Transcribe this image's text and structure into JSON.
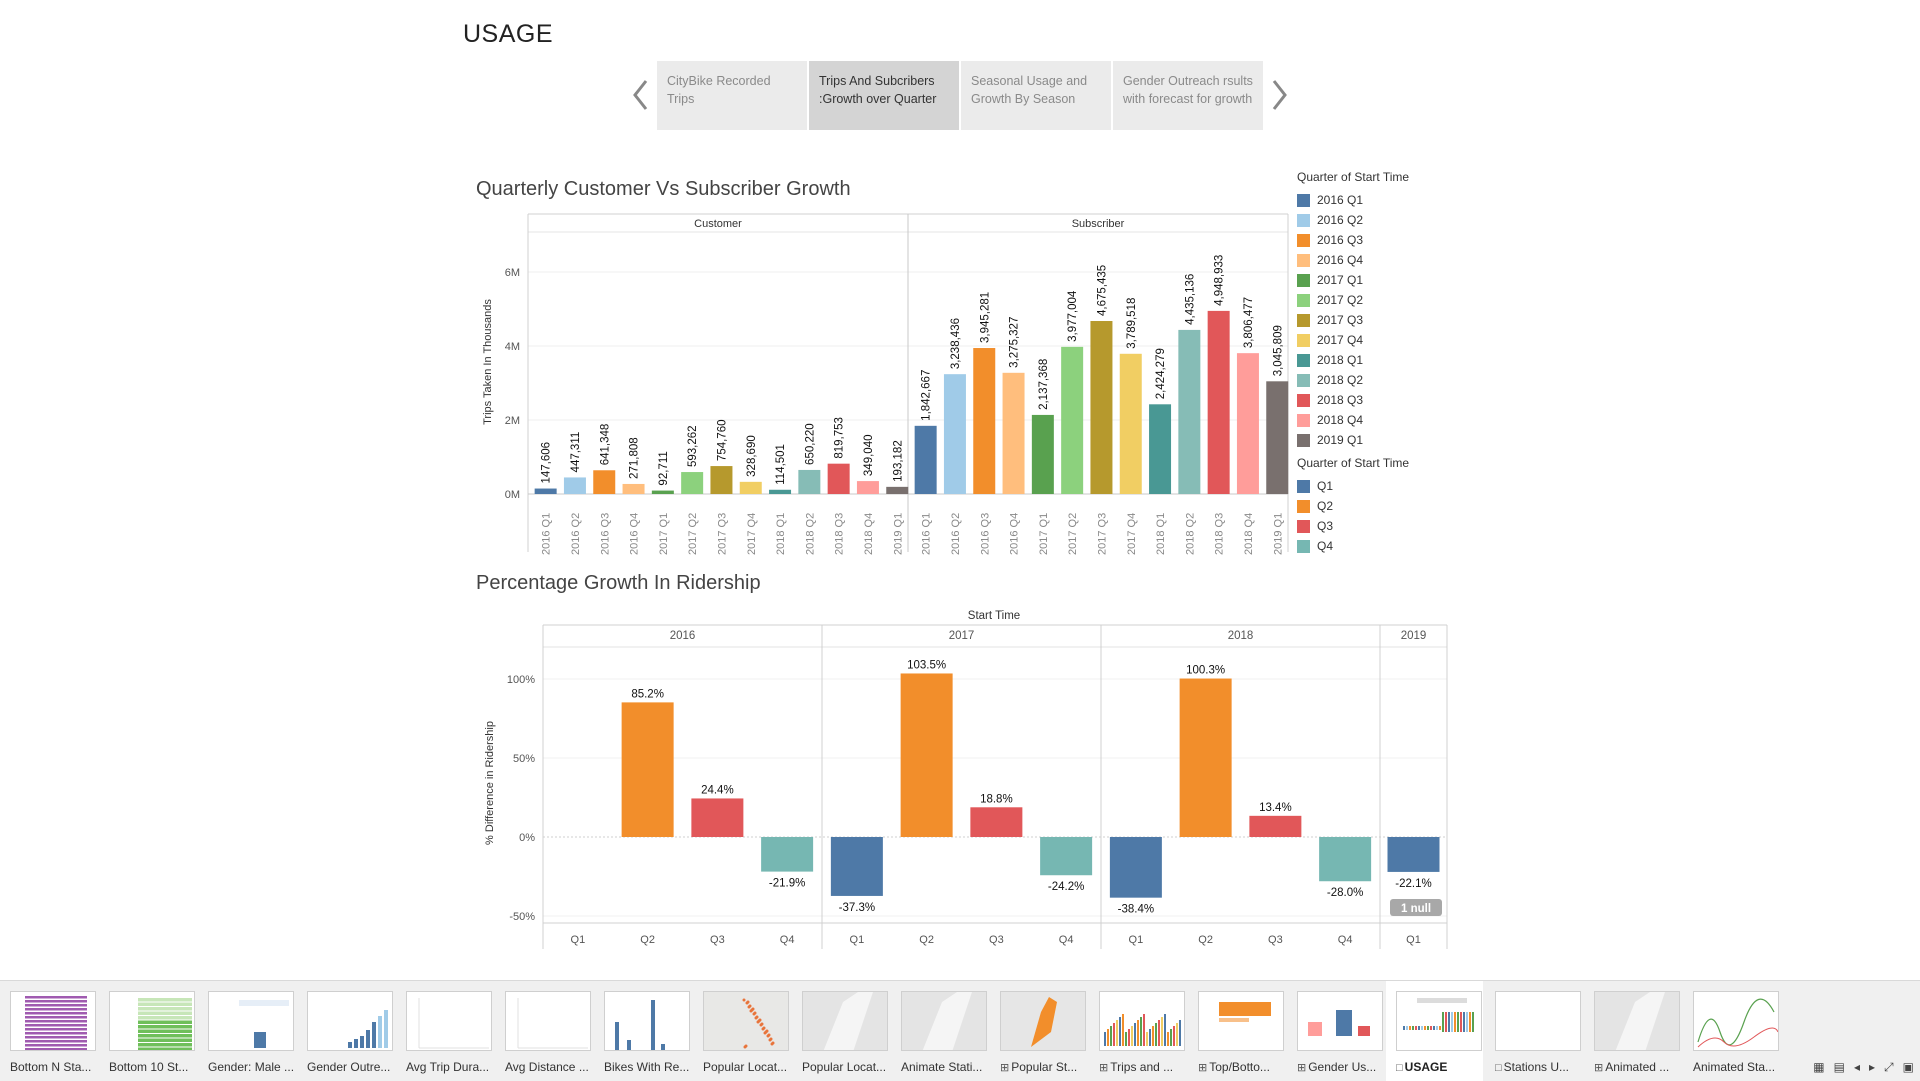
{
  "story": {
    "title": "USAGE",
    "points": [
      {
        "label": "CityBike  Recorded Trips",
        "active": false
      },
      {
        "label": "Trips And Subcribers :Growth over Quarter",
        "active": true
      },
      {
        "label": "Seasonal Usage and Growth By Season",
        "active": false
      },
      {
        "label": "Gender Outreach rsults with forecast for growth",
        "active": false
      }
    ]
  },
  "chart_data": [
    {
      "type": "bar",
      "title": "Quarterly Customer Vs Subscriber Growth",
      "ylabel": "Trips Taken In Thousands",
      "ylim": [
        0,
        6500000
      ],
      "y_ticks": [
        {
          "value": 0,
          "label": "0M"
        },
        {
          "value": 2000000,
          "label": "2M"
        },
        {
          "value": 4000000,
          "label": "4M"
        },
        {
          "value": 6000000,
          "label": "6M"
        }
      ],
      "categories": [
        "2016 Q1",
        "2016 Q2",
        "2016 Q3",
        "2016 Q4",
        "2017 Q1",
        "2017 Q2",
        "2017 Q3",
        "2017 Q4",
        "2018 Q1",
        "2018 Q2",
        "2018 Q3",
        "2018 Q4",
        "2019 Q1"
      ],
      "colors": [
        "#4e79a7",
        "#a0cbe8",
        "#f28e2b",
        "#ffbe7d",
        "#59a14f",
        "#8cd17d",
        "#b6992d",
        "#f1ce63",
        "#499894",
        "#86bcb6",
        "#e15759",
        "#ff9d9a",
        "#79706e"
      ],
      "panels": [
        {
          "name": "Customer",
          "labels": [
            "147,606",
            "447,311",
            "641,348",
            "271,808",
            "92,711",
            "593,262",
            "754,760",
            "328,690",
            "114,501",
            "650,220",
            "819,753",
            "349,040",
            "193,182"
          ],
          "values": [
            147606,
            447311,
            641348,
            271808,
            92711,
            593262,
            754760,
            328690,
            114501,
            650220,
            819753,
            349040,
            193182
          ]
        },
        {
          "name": "Subscriber",
          "labels": [
            "1,842,667",
            "3,238,436",
            "3,945,281",
            "3,275,327",
            "2,137,368",
            "3,977,004",
            "4,675,435",
            "3,789,518",
            "2,424,279",
            "4,435,136",
            "4,948,933",
            "3,806,477",
            "3,045,809"
          ],
          "values": [
            1842667,
            3238436,
            3945281,
            3275327,
            2137368,
            3977004,
            4675435,
            3789518,
            2424279,
            4435136,
            4948933,
            3806477,
            3045809
          ]
        }
      ]
    },
    {
      "type": "bar",
      "title": "Percentage Growth In Ridership",
      "xlabel": "Start Time",
      "ylabel": "% Difference in Ridership",
      "ylim": [
        -50,
        110
      ],
      "y_ticks": [
        {
          "value": 100,
          "label": "100%"
        },
        {
          "value": 50,
          "label": "50%"
        },
        {
          "value": 0,
          "label": "0%"
        },
        {
          "value": -50,
          "label": "-50%"
        }
      ],
      "groups": [
        {
          "year": "2016",
          "quarters": [
            "Q1",
            "Q2",
            "Q3",
            "Q4"
          ],
          "values": [
            null,
            85.2,
            24.4,
            -21.9
          ],
          "labels": [
            "",
            "85.2%",
            "24.4%",
            "-21.9%"
          ]
        },
        {
          "year": "2017",
          "quarters": [
            "Q1",
            "Q2",
            "Q3",
            "Q4"
          ],
          "values": [
            -37.3,
            103.5,
            18.8,
            -24.2
          ],
          "labels": [
            "-37.3%",
            "103.5%",
            "18.8%",
            "-24.2%"
          ]
        },
        {
          "year": "2018",
          "quarters": [
            "Q1",
            "Q2",
            "Q3",
            "Q4"
          ],
          "values": [
            -38.4,
            100.3,
            13.4,
            -28.0
          ],
          "labels": [
            "-38.4%",
            "100.3%",
            "13.4%",
            "-28.0%"
          ]
        },
        {
          "year": "2019",
          "quarters": [
            "Q1"
          ],
          "values": [
            -22.1
          ],
          "labels": [
            "-22.1%"
          ]
        }
      ],
      "quarter_colors": {
        "Q1": "#4e79a7",
        "Q2": "#f28e2b",
        "Q3": "#e15759",
        "Q4": "#76b7b2"
      },
      "null_indicator": "1 null"
    }
  ],
  "legend": {
    "title1": "Quarter of Start Time",
    "items1": [
      {
        "label": "2016 Q1",
        "color": "#4e79a7"
      },
      {
        "label": "2016 Q2",
        "color": "#a0cbe8"
      },
      {
        "label": "2016 Q3",
        "color": "#f28e2b"
      },
      {
        "label": "2016 Q4",
        "color": "#ffbe7d"
      },
      {
        "label": "2017 Q1",
        "color": "#59a14f"
      },
      {
        "label": "2017 Q2",
        "color": "#8cd17d"
      },
      {
        "label": "2017 Q3",
        "color": "#b6992d"
      },
      {
        "label": "2017 Q4",
        "color": "#f1ce63"
      },
      {
        "label": "2018 Q1",
        "color": "#499894"
      },
      {
        "label": "2018 Q2",
        "color": "#86bcb6"
      },
      {
        "label": "2018 Q3",
        "color": "#e15759"
      },
      {
        "label": "2018 Q4",
        "color": "#ff9d9a"
      },
      {
        "label": "2019 Q1",
        "color": "#79706e"
      }
    ],
    "title2": "Quarter of Start Time",
    "items2": [
      {
        "label": "Q1",
        "color": "#4e79a7"
      },
      {
        "label": "Q2",
        "color": "#f28e2b"
      },
      {
        "label": "Q3",
        "color": "#e15759"
      },
      {
        "label": "Q4",
        "color": "#76b7b2"
      }
    ]
  },
  "filmstrip": {
    "tabs": [
      {
        "label": "Bottom N Sta...",
        "icon": "",
        "thumb": "hbars-purple"
      },
      {
        "label": "Bottom 10 St...",
        "icon": "",
        "thumb": "hbars-green"
      },
      {
        "label": "Gender: Male ...",
        "icon": "",
        "thumb": "table-bar"
      },
      {
        "label": "Gender Outre...",
        "icon": "",
        "thumb": "rising-bars"
      },
      {
        "label": "Avg Trip Dura...",
        "icon": "",
        "thumb": "blank-grid"
      },
      {
        "label": "Avg Distance ...",
        "icon": "",
        "thumb": "blank-grid"
      },
      {
        "label": "Bikes With Re...",
        "icon": "",
        "thumb": "tall-bars"
      },
      {
        "label": "Popular Locat...",
        "icon": "",
        "thumb": "map-dots"
      },
      {
        "label": "Popular Locat...",
        "icon": "",
        "thumb": "map-plain"
      },
      {
        "label": "Animate Stati...",
        "icon": "",
        "thumb": "map-plain"
      },
      {
        "label": "Popular St...",
        "icon": "dashboard-icon",
        "thumb": "map-orange"
      },
      {
        "label": "Trips and ...",
        "icon": "dashboard-icon",
        "thumb": "multi-bars"
      },
      {
        "label": "Top/Botto...",
        "icon": "dashboard-icon",
        "thumb": "orange-panel"
      },
      {
        "label": "Gender Us...",
        "icon": "dashboard-icon",
        "thumb": "gender-bars"
      },
      {
        "label": "USAGE",
        "icon": "story-icon",
        "thumb": "usage",
        "active": true
      },
      {
        "label": "Stations U...",
        "icon": "story-icon",
        "thumb": "blank"
      },
      {
        "label": "Animated ...",
        "icon": "dashboard-icon",
        "thumb": "map-gray"
      },
      {
        "label": "Animated Sta...",
        "icon": "",
        "thumb": "green-lines"
      }
    ],
    "controls": [
      "grid-view-icon",
      "list-view-icon",
      "prev-sheet-icon",
      "next-sheet-icon",
      "fit-icon",
      "present-icon"
    ]
  }
}
